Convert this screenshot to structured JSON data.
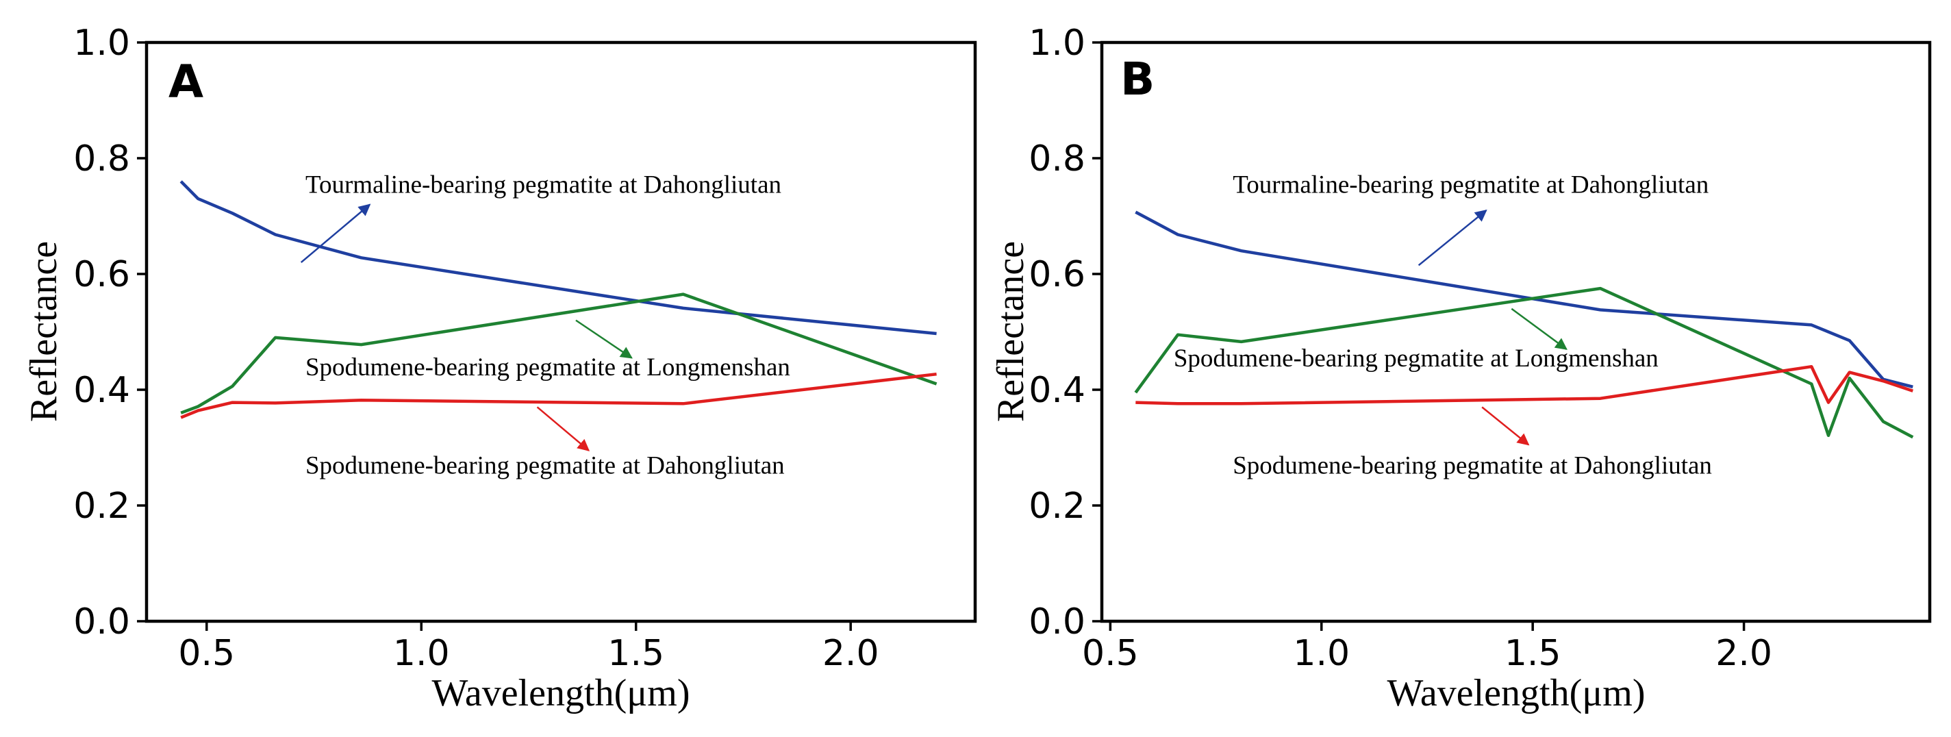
{
  "chart_data": [
    {
      "type": "line",
      "panel": "A",
      "xlabel": "Wavelength(μm)",
      "ylabel": "Reflectance",
      "xlim": [
        0.36,
        2.29
      ],
      "ylim": [
        0.0,
        1.0
      ],
      "xticks": [
        "0.5",
        "1.0",
        "1.5",
        "2.0"
      ],
      "yticks": [
        "0.0",
        "0.2",
        "0.4",
        "0.6",
        "0.8",
        "1.0"
      ],
      "grid": false,
      "series": [
        {
          "name": "Tourmaline-bearing pegmatite at Dahongliutan",
          "color": "#1f3fa0",
          "x": [
            0.44,
            0.48,
            0.56,
            0.66,
            0.86,
            1.61,
            2.2
          ],
          "y": [
            0.76,
            0.73,
            0.705,
            0.668,
            0.628,
            0.541,
            0.497
          ]
        },
        {
          "name": "Spodumene-bearing pegmatite at Longmenshan",
          "color": "#1e8232",
          "x": [
            0.44,
            0.48,
            0.56,
            0.66,
            0.86,
            1.61,
            2.2
          ],
          "y": [
            0.36,
            0.371,
            0.406,
            0.49,
            0.478,
            0.565,
            0.41
          ]
        },
        {
          "name": "Spodumene-bearing pegmatite at Dahongliutan",
          "color": "#e01e1e",
          "x": [
            0.44,
            0.48,
            0.56,
            0.66,
            0.86,
            1.61,
            2.2
          ],
          "y": [
            0.352,
            0.364,
            0.378,
            0.377,
            0.382,
            0.376,
            0.427
          ]
        }
      ],
      "annotations": [
        {
          "text": "Tourmaline-bearing pegmatite at Dahongliutan",
          "color": "#1f3fa0",
          "x": 0.73,
          "y": 0.74
        },
        {
          "text": "Spodumene-bearing pegmatite at Longmenshan",
          "color": "#1e8232",
          "x": 0.73,
          "y": 0.425
        },
        {
          "text": "Spodumene-bearing pegmatite at Dahongliutan",
          "color": "#e01e1e",
          "x": 0.73,
          "y": 0.255
        }
      ]
    },
    {
      "type": "line",
      "panel": "B",
      "xlabel": "Wavelength(μm)",
      "ylabel": "Reflectance",
      "xlim": [
        0.48,
        2.44
      ],
      "ylim": [
        0.0,
        1.0
      ],
      "xticks": [
        "0.5",
        "1.0",
        "1.5",
        "2.0"
      ],
      "yticks": [
        "0.0",
        "0.2",
        "0.4",
        "0.6",
        "0.8",
        "1.0"
      ],
      "grid": false,
      "series": [
        {
          "name": "Tourmaline-bearing pegmatite at Dahongliutan",
          "color": "#1f3fa0",
          "x": [
            0.56,
            0.66,
            0.81,
            1.66,
            2.16,
            2.25,
            2.33,
            2.4
          ],
          "y": [
            0.707,
            0.668,
            0.64,
            0.538,
            0.512,
            0.485,
            0.418,
            0.405
          ]
        },
        {
          "name": "Spodumene-bearing pegmatite at Longmenshan",
          "color": "#1e8232",
          "x": [
            0.56,
            0.66,
            0.81,
            1.66,
            2.16,
            2.2,
            2.25,
            2.33,
            2.4
          ],
          "y": [
            0.395,
            0.495,
            0.483,
            0.575,
            0.41,
            0.321,
            0.42,
            0.345,
            0.318
          ]
        },
        {
          "name": "Spodumene-bearing pegmatite at Dahongliutan",
          "color": "#e01e1e",
          "x": [
            0.56,
            0.66,
            0.81,
            1.66,
            2.16,
            2.2,
            2.25,
            2.33,
            2.4
          ],
          "y": [
            0.378,
            0.376,
            0.376,
            0.385,
            0.44,
            0.378,
            0.43,
            0.415,
            0.398
          ]
        }
      ],
      "annotations": [
        {
          "text": "Tourmaline-bearing pegmatite at Dahongliutan",
          "color": "#1f3fa0",
          "x": 0.79,
          "y": 0.74
        },
        {
          "text": "Spodumene-bearing pegmatite at Longmenshan",
          "color": "#1e8232",
          "x": 0.65,
          "y": 0.44
        },
        {
          "text": "Spodumene-bearing pegmatite at Dahongliutan",
          "color": "#e01e1e",
          "x": 0.79,
          "y": 0.255
        }
      ]
    }
  ]
}
